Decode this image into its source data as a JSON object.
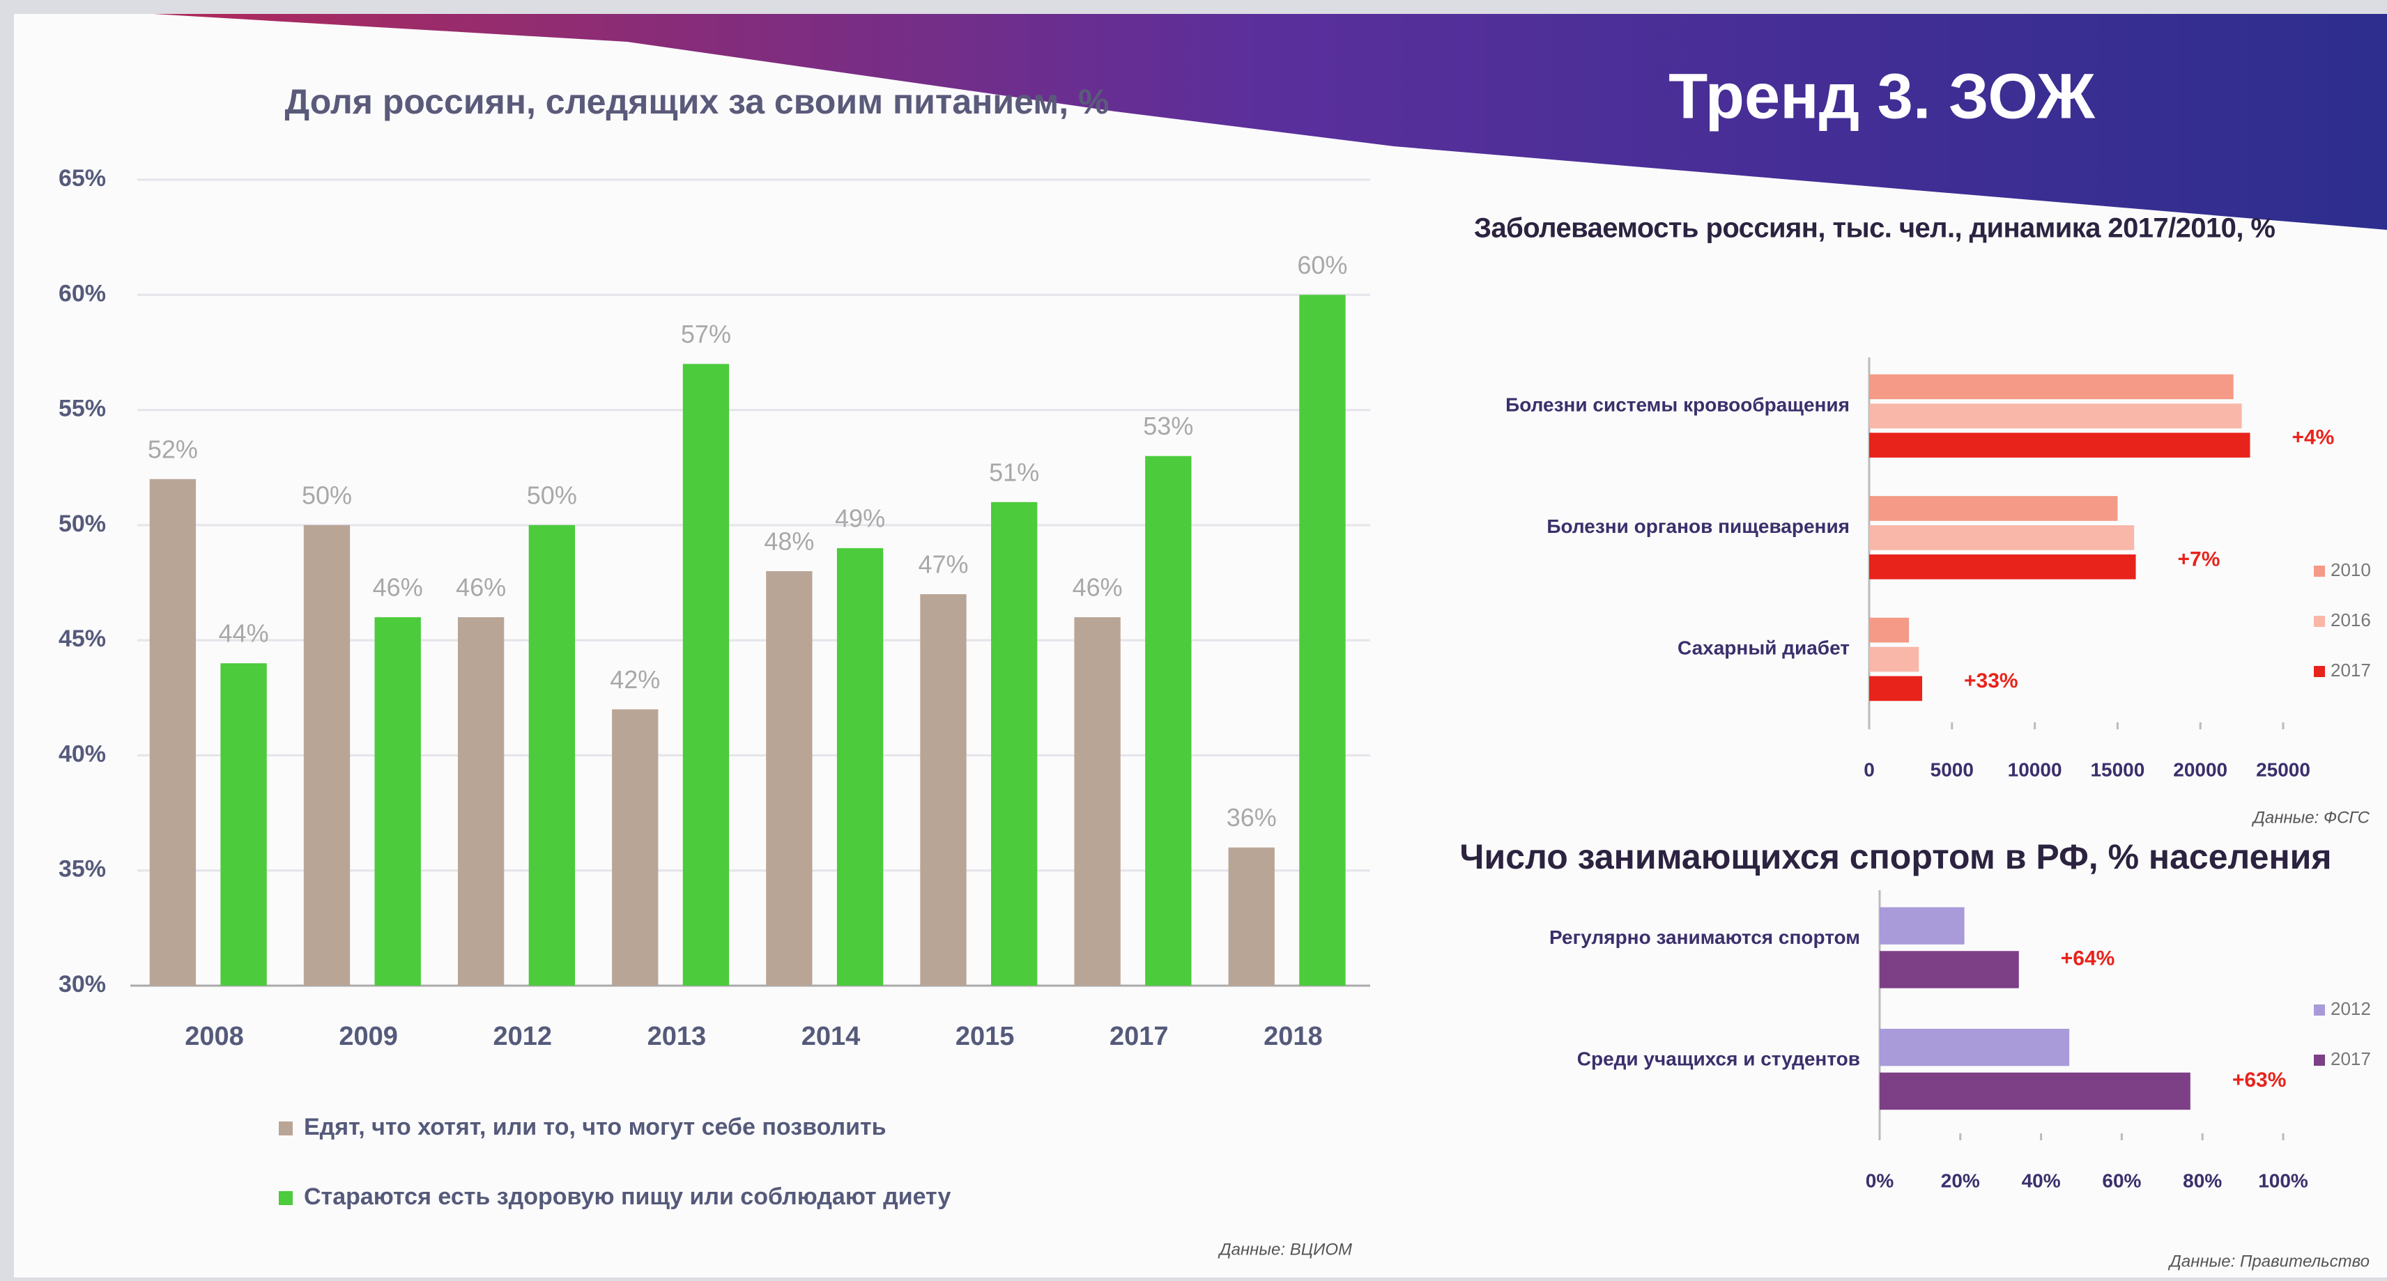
{
  "header": {
    "title": "Тренд 3. ЗОЖ"
  },
  "chart_data": [
    {
      "type": "bar",
      "title": "Доля россиян, следящих за своим питанием, %",
      "categories": [
        "2008",
        "2009",
        "2012",
        "2013",
        "2014",
        "2015",
        "2017",
        "2018"
      ],
      "series": [
        {
          "name": "Едят, что хотят, или то, что могут себе позволить",
          "color": "#b9a596",
          "values": [
            52,
            50,
            46,
            42,
            48,
            47,
            46,
            36
          ],
          "value_labels": [
            "52%",
            "50%",
            "46%",
            "42%",
            "48%",
            "47%",
            "46%",
            "36%"
          ]
        },
        {
          "name": "Стараются есть здоровую пищу или соблюдают диету",
          "color": "#4ccb3c",
          "values": [
            44,
            46,
            50,
            57,
            49,
            51,
            53,
            60
          ],
          "value_labels": [
            "44%",
            "46%",
            "50%",
            "57%",
            "49%",
            "51%",
            "53%",
            "60%"
          ]
        }
      ],
      "ylim": [
        30,
        65
      ],
      "yticks": [
        {
          "value": 30,
          "label": "30%"
        },
        {
          "value": 35,
          "label": "35%"
        },
        {
          "value": 40,
          "label": "40%"
        },
        {
          "value": 45,
          "label": "45%"
        },
        {
          "value": 50,
          "label": "50%"
        },
        {
          "value": 55,
          "label": "55%"
        },
        {
          "value": 60,
          "label": "60%"
        },
        {
          "value": 65,
          "label": "65%"
        }
      ],
      "grid": true,
      "source": "Данные: ВЦИОМ"
    },
    {
      "type": "barh",
      "title": "Заболеваемость россиян, тыс. чел., динамика 2017/2010, %",
      "categories": [
        "Болезни системы кровообращения",
        "Болезни органов пищеварения",
        "Сахарный диабет"
      ],
      "series": [
        {
          "name": "2010",
          "color": "#f49a86",
          "values": [
            22000,
            15000,
            2400
          ]
        },
        {
          "name": "2016",
          "color": "#f8b7a8",
          "values": [
            22500,
            16000,
            3000
          ]
        },
        {
          "name": "2017",
          "color": "#e8231b",
          "values": [
            23000,
            16100,
            3200
          ]
        }
      ],
      "annotations": [
        "+4%",
        "+7%",
        "+33%"
      ],
      "xlim": [
        0,
        25000
      ],
      "xticks": [
        0,
        5000,
        10000,
        15000,
        20000,
        25000
      ],
      "source": "Данные: ФСГС"
    },
    {
      "type": "barh",
      "title": "Число занимающихся спортом в РФ, % населения",
      "categories": [
        "Регулярно занимаются спортом",
        "Среди учащихся и студентов"
      ],
      "series": [
        {
          "name": "2012",
          "color": "#a99ad9",
          "values": [
            21,
            47
          ]
        },
        {
          "name": "2017",
          "color": "#7d3f86",
          "values": [
            34.5,
            77
          ]
        }
      ],
      "annotations": [
        "+64%",
        "+63%"
      ],
      "xlim": [
        0,
        100
      ],
      "xticks": [
        {
          "value": 0,
          "label": "0%"
        },
        {
          "value": 20,
          "label": "20%"
        },
        {
          "value": 40,
          "label": "40%"
        },
        {
          "value": 60,
          "label": "60%"
        },
        {
          "value": 80,
          "label": "80%"
        },
        {
          "value": 100,
          "label": "100%"
        }
      ],
      "source": "Данные: Правительство"
    }
  ]
}
